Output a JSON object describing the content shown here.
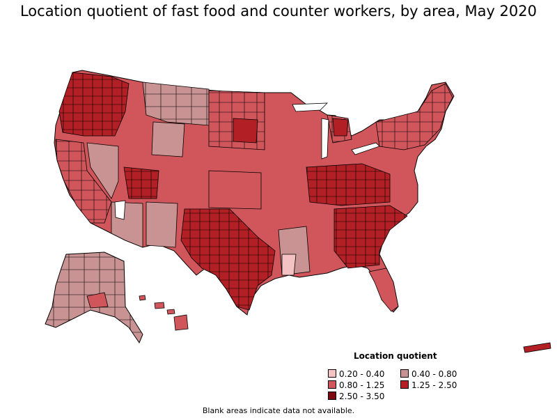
{
  "title": "Location quotient of fast food and counter workers, by area, May 2020",
  "legend": {
    "title": "Location quotient",
    "items": [
      {
        "label": "0.20 - 0.40",
        "color": "#f4c2c2"
      },
      {
        "label": "0.40 - 0.80",
        "color": "#c99393"
      },
      {
        "label": "0.80 - 1.25",
        "color": "#d0565c"
      },
      {
        "label": "1.25 - 2.50",
        "color": "#b22025"
      },
      {
        "label": "2.50 - 3.50",
        "color": "#7a0a10"
      }
    ]
  },
  "footnote": "Blank areas indicate data not available.",
  "colors": {
    "border": "#000000",
    "background": "#ffffff"
  }
}
